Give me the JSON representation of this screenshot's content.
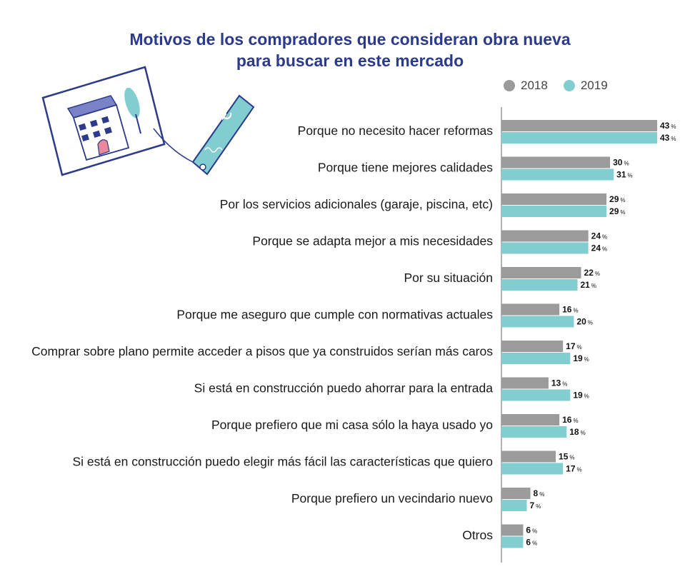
{
  "chart_data": {
    "type": "bar",
    "orientation": "horizontal",
    "title": "Motivos de los compradores que consideran obra nueva para buscar en este mercado",
    "title_lines": [
      "Motivos de los compradores que consideran obra nueva",
      "para buscar en este mercado"
    ],
    "categories": [
      "Porque no necesito hacer reformas",
      "Porque tiene mejores calidades",
      "Por los servicios adicionales (garaje, piscina, etc)",
      "Porque se adapta mejor a mis necesidades",
      "Por su situación",
      "Porque me aseguro que cumple con normativas actuales",
      "Comprar sobre plano permite acceder a pisos que ya construidos serían más caros",
      "Si está en construcción puedo ahorrar para la entrada",
      "Porque prefiero que mi casa sólo la haya usado yo",
      "Si está en construcción puedo elegir más fácil las características que quiero",
      "Porque prefiero un vecindario nuevo",
      "Otros"
    ],
    "series": [
      {
        "name": "2018",
        "color": "#9b9b9b",
        "values": [
          43,
          30,
          29,
          24,
          22,
          16,
          17,
          13,
          16,
          15,
          8,
          6
        ]
      },
      {
        "name": "2019",
        "color": "#82cdd0",
        "values": [
          43,
          31,
          29,
          24,
          21,
          20,
          19,
          19,
          18,
          17,
          7,
          6
        ]
      }
    ],
    "value_suffix": "%",
    "xlim": [
      0,
      43
    ],
    "legend_position": "top-right",
    "grid": false
  },
  "colors": {
    "title": "#2b3a8a",
    "text": "#1a1a1a",
    "axis": "#999999"
  }
}
